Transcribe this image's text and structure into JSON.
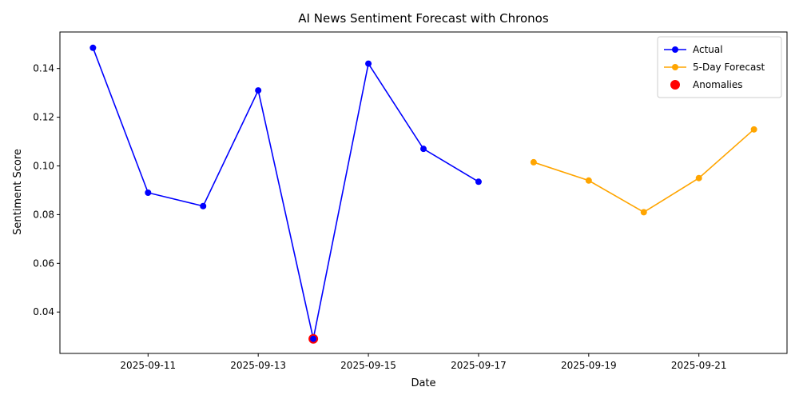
{
  "chart_data": {
    "type": "line",
    "title": "AI News Sentiment Forecast with Chronos",
    "xlabel": "Date",
    "ylabel": "Sentiment Score",
    "x_ticks": [
      "2025-09-11",
      "2025-09-13",
      "2025-09-15",
      "2025-09-17",
      "2025-09-19",
      "2025-09-21"
    ],
    "y_ticks": [
      "0.04",
      "0.06",
      "0.08",
      "0.10",
      "0.12",
      "0.14"
    ],
    "xlim": [
      "2025-09-09",
      "2025-09-22"
    ],
    "ylim": [
      0.023,
      0.155
    ],
    "legend_position": "top-right",
    "series": [
      {
        "name": "Actual",
        "color": "#0000ff",
        "style": "line-marker",
        "points": [
          {
            "x": "2025-09-10",
            "y": 0.1485
          },
          {
            "x": "2025-09-11",
            "y": 0.089
          },
          {
            "x": "2025-09-12",
            "y": 0.0835
          },
          {
            "x": "2025-09-13",
            "y": 0.131
          },
          {
            "x": "2025-09-14",
            "y": 0.029
          },
          {
            "x": "2025-09-15",
            "y": 0.142
          },
          {
            "x": "2025-09-16",
            "y": 0.107
          },
          {
            "x": "2025-09-17",
            "y": 0.0935
          }
        ]
      },
      {
        "name": "5-Day Forecast",
        "color": "#ffa500",
        "style": "line-marker",
        "points": [
          {
            "x": "2025-09-18",
            "y": 0.1015
          },
          {
            "x": "2025-09-19",
            "y": 0.094
          },
          {
            "x": "2025-09-20",
            "y": 0.081
          },
          {
            "x": "2025-09-21",
            "y": 0.095
          },
          {
            "x": "2025-09-22",
            "y": 0.115
          }
        ]
      },
      {
        "name": "Anomalies",
        "color": "#ff0000",
        "style": "scatter",
        "points": [
          {
            "x": "2025-09-14",
            "y": 0.029
          }
        ]
      }
    ]
  }
}
